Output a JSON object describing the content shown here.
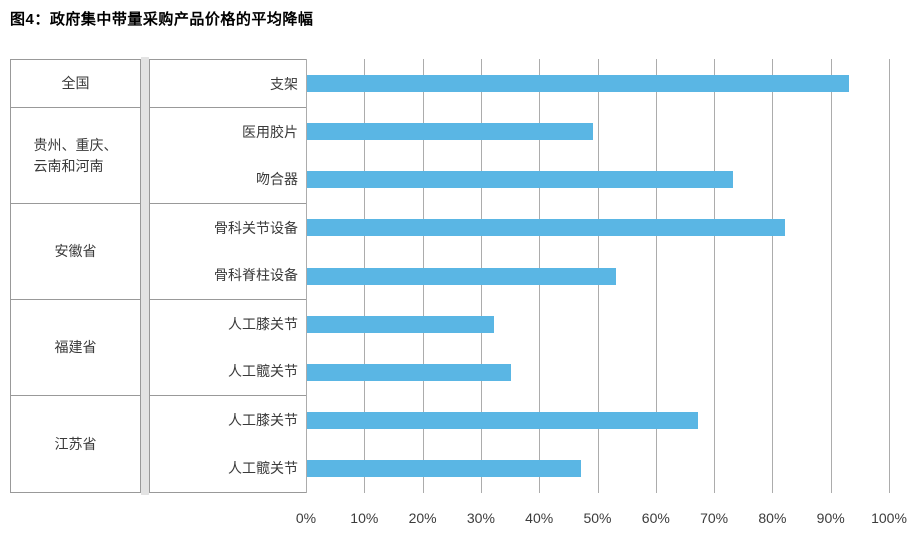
{
  "title": "图4：政府集中带量采购产品价格的平均降幅",
  "colors": {
    "bar": "#5AB6E4",
    "grid": "#ACACAC",
    "table_border": "#999999",
    "column_spacer": "#E3E3E3",
    "label_text": "#3A3A3A"
  },
  "x_axis": {
    "ticks": [
      "0%",
      "10%",
      "20%",
      "30%",
      "40%",
      "50%",
      "60%",
      "70%",
      "80%",
      "90%",
      "100%"
    ]
  },
  "chart_data": {
    "type": "bar",
    "orientation": "horizontal",
    "title": "图4：政府集中带量采购产品价格的平均降幅",
    "xlabel": "",
    "ylabel": "",
    "value_unit": "%",
    "xlim": [
      0,
      100
    ],
    "x_tick_values": [
      0,
      10,
      20,
      30,
      40,
      50,
      60,
      70,
      80,
      90,
      100
    ],
    "x_tick_labels": [
      "0%",
      "10%",
      "20%",
      "30%",
      "40%",
      "50%",
      "60%",
      "70%",
      "80%",
      "90%",
      "100%"
    ],
    "grid": true,
    "legend_position": "none",
    "groups": [
      {
        "region": "全国",
        "region_lines": [
          "全国"
        ],
        "items": [
          {
            "label": "支架",
            "value": 93
          }
        ]
      },
      {
        "region": "贵州、重庆、云南和河南",
        "region_lines": [
          "贵州、重庆、",
          "云南和河南"
        ],
        "items": [
          {
            "label": "医用胶片",
            "value": 49
          },
          {
            "label": "吻合器",
            "value": 73
          }
        ]
      },
      {
        "region": "安徽省",
        "region_lines": [
          "安徽省"
        ],
        "items": [
          {
            "label": "骨科关节设备",
            "value": 82
          },
          {
            "label": "骨科脊柱设备",
            "value": 53
          }
        ]
      },
      {
        "region": "福建省",
        "region_lines": [
          "福建省"
        ],
        "items": [
          {
            "label": "人工膝关节",
            "value": 32
          },
          {
            "label": "人工髋关节",
            "value": 35
          }
        ]
      },
      {
        "region": "江苏省",
        "region_lines": [
          "江苏省"
        ],
        "items": [
          {
            "label": "人工膝关节",
            "value": 67
          },
          {
            "label": "人工髋关节",
            "value": 47
          }
        ]
      }
    ]
  }
}
